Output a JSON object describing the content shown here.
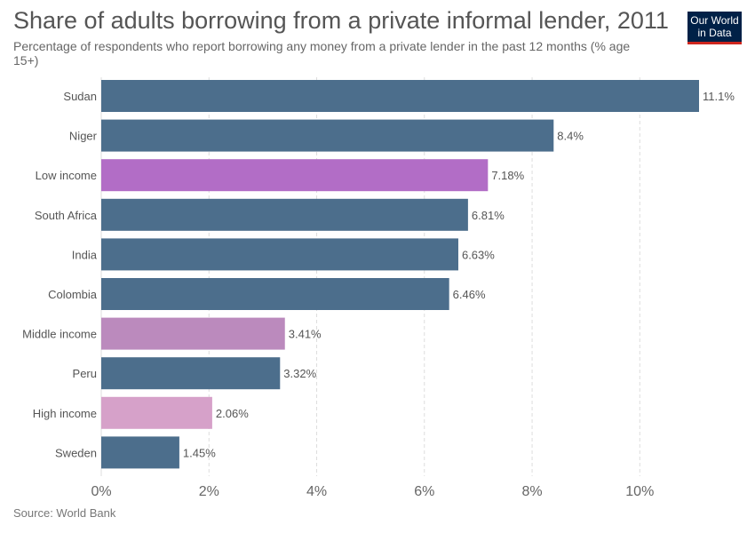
{
  "header": {
    "title": "Share of adults borrowing from a private informal lender, 2011",
    "subtitle": "Percentage of respondents who report borrowing any money from a private lender in the past 12 months (% age 15+)",
    "logo_line1": "Our World",
    "logo_line2": "in Data"
  },
  "footer": {
    "source": "Source: World Bank"
  },
  "chart_data": {
    "type": "bar",
    "orientation": "horizontal",
    "title": "Share of adults borrowing from a private informal lender, 2011",
    "categories": [
      "Sudan",
      "Niger",
      "Low income",
      "South Africa",
      "India",
      "Colombia",
      "Middle income",
      "Peru",
      "High income",
      "Sweden"
    ],
    "values": [
      11.1,
      8.4,
      7.18,
      6.81,
      6.63,
      6.46,
      3.41,
      3.32,
      2.06,
      1.45
    ],
    "value_labels": [
      "11.1%",
      "8.4%",
      "7.18%",
      "6.81%",
      "6.63%",
      "6.46%",
      "3.41%",
      "3.32%",
      "2.06%",
      "1.45%"
    ],
    "colors": [
      "#4c6e8c",
      "#4c6e8c",
      "#b26dc6",
      "#4c6e8c",
      "#4c6e8c",
      "#4c6e8c",
      "#bb8abd",
      "#4c6e8c",
      "#d6a1c9",
      "#4c6e8c"
    ],
    "xlim": [
      0,
      11.1
    ],
    "xticks": [
      0,
      2,
      4,
      6,
      8,
      10
    ],
    "xtick_labels": [
      "0%",
      "2%",
      "4%",
      "6%",
      "8%",
      "10%"
    ],
    "grid": "vertical-dashed"
  }
}
